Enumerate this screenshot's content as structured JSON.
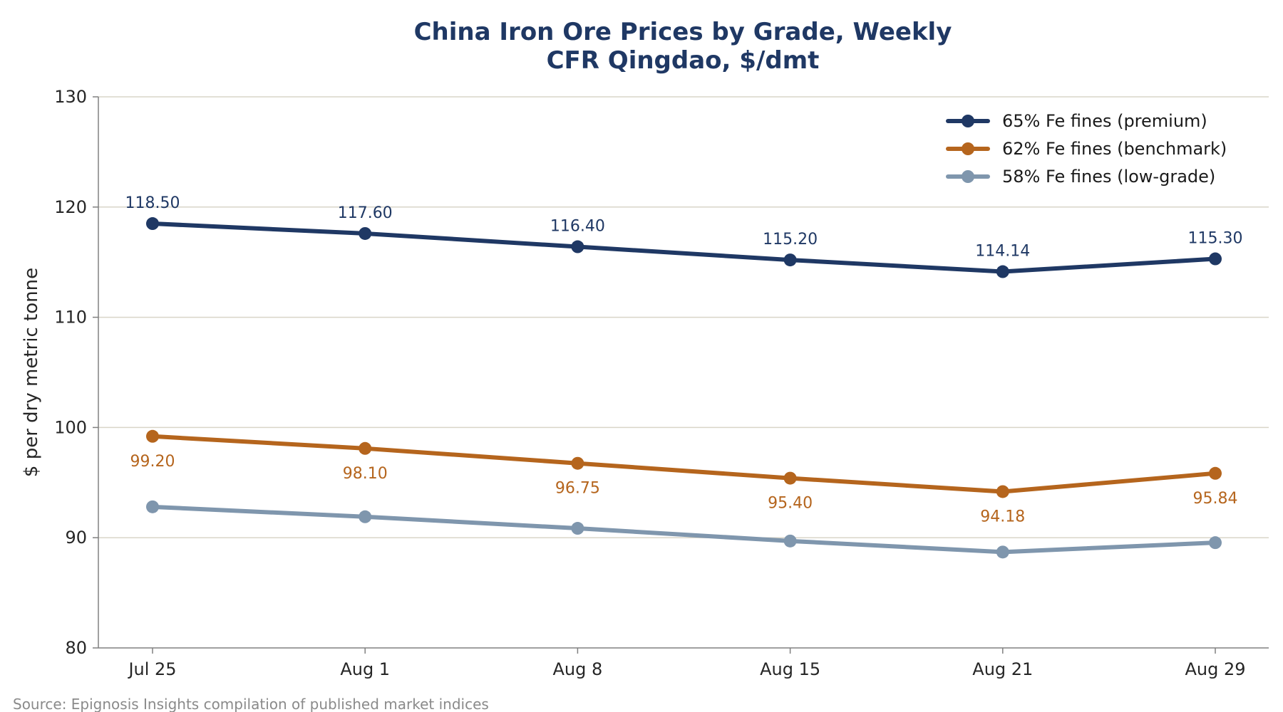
{
  "chart_data": {
    "type": "line",
    "title": "China Iron Ore Prices by Grade, Weekly",
    "subtitle": "CFR Qingdao, $/dmt",
    "xlabel": "",
    "ylabel": "$ per dry metric tonne",
    "categories": [
      "Jul 25",
      "Aug 1",
      "Aug 8",
      "Aug 15",
      "Aug 21",
      "Aug 29"
    ],
    "ylim": [
      80,
      130
    ],
    "yticks": [
      80,
      90,
      100,
      110,
      120,
      130
    ],
    "grid": "horizontal",
    "legend_position": "top-right",
    "series": [
      {
        "name": "65% Fe fines (premium)",
        "color": "#1f3864",
        "values": [
          118.5,
          117.6,
          116.4,
          115.2,
          114.14,
          115.3
        ],
        "labels": [
          "118.50",
          "117.60",
          "116.40",
          "115.20",
          "114.14",
          "115.30"
        ],
        "label_position": "above"
      },
      {
        "name": "62% Fe fines (benchmark)",
        "color": "#b5651d",
        "values": [
          99.2,
          98.1,
          96.75,
          95.4,
          94.18,
          95.84
        ],
        "labels": [
          "99.20",
          "98.10",
          "96.75",
          "95.40",
          "94.18",
          "95.84"
        ],
        "label_position": "below"
      },
      {
        "name": "58% Fe fines (low-grade)",
        "color": "#7f96ad",
        "values": [
          92.8,
          91.9,
          90.85,
          89.7,
          88.7,
          89.55
        ],
        "labels": [],
        "label_position": "none"
      }
    ],
    "title_color": "#1f3864",
    "grid_color": "#d9d5c8",
    "axis_color": "#808080"
  },
  "source": "Source: Epignosis Insights compilation of published market indices"
}
